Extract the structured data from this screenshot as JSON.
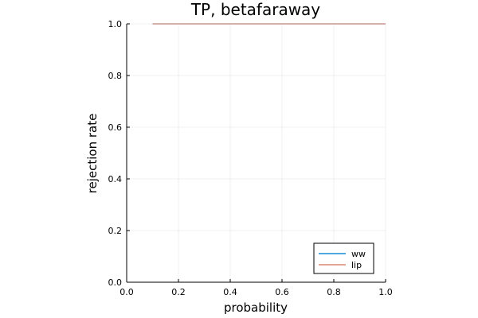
{
  "chart_data": {
    "type": "line",
    "title": "TP, betafaraway",
    "xlabel": "probability",
    "ylabel": "rejection rate",
    "xlim": [
      0.0,
      1.0
    ],
    "ylim": [
      0.0,
      1.0
    ],
    "x_ticks": [
      "0.0",
      "0.2",
      "0.4",
      "0.6",
      "0.8",
      "1.0"
    ],
    "y_ticks": [
      "0.0",
      "0.2",
      "0.4",
      "0.6",
      "0.8",
      "1.0"
    ],
    "grid": true,
    "legend_position": "bottom-right",
    "series": [
      {
        "name": "ww",
        "color": "#4FA8E0",
        "x": [
          0.1,
          0.2,
          0.3,
          0.4,
          0.5,
          0.6,
          0.7,
          0.8,
          0.9,
          1.0
        ],
        "y": [
          1.0,
          1.0,
          1.0,
          1.0,
          1.0,
          1.0,
          1.0,
          1.0,
          1.0,
          1.0
        ]
      },
      {
        "name": "lip",
        "color": "#E4A597",
        "x": [
          0.1,
          0.2,
          0.3,
          0.4,
          0.5,
          0.6,
          0.7,
          0.8,
          0.9,
          1.0
        ],
        "y": [
          1.0,
          1.0,
          1.0,
          1.0,
          1.0,
          1.0,
          1.0,
          1.0,
          1.0,
          1.0
        ]
      }
    ]
  }
}
